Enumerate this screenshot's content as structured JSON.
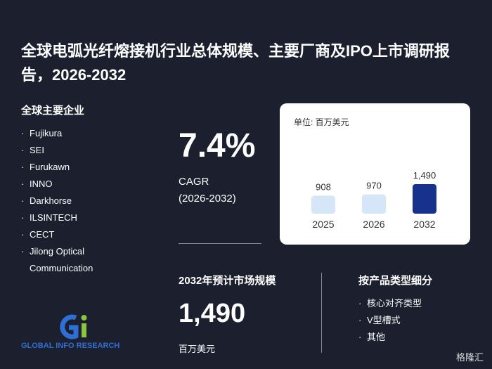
{
  "header": {
    "title": "全球电弧光纤熔接机行业总体规模、主要厂商及IPO上市调研报告，2026-2032"
  },
  "companies": {
    "title": "全球主要企业",
    "items": [
      "Fujikura",
      "SEI",
      "Furukawn",
      "INNO",
      "Darkhorse",
      "ILSINTECH",
      "CECT",
      "Jilong Optical Communication"
    ]
  },
  "cagr": {
    "value": "7.4%",
    "label": "CAGR",
    "period": "(2026-2032)"
  },
  "chart_data": {
    "type": "bar",
    "subtitle": "单位: 百万美元",
    "categories": [
      "2025",
      "2026",
      "2032"
    ],
    "values": [
      908,
      970,
      1490
    ],
    "value_labels": [
      "908",
      "970",
      "1,490"
    ],
    "colors": [
      "#d5e6f8",
      "#d5e6f8",
      "#16328c"
    ]
  },
  "market": {
    "title": "2032年预计市场规模",
    "value": "1,490",
    "unit": "百万美元"
  },
  "segments": {
    "title": "按产品类型细分",
    "items": [
      "核心对齐类型",
      "V型槽式",
      "其他"
    ]
  },
  "brand": "GLOBAL INFO RESEARCH",
  "watermark": "格隆汇"
}
